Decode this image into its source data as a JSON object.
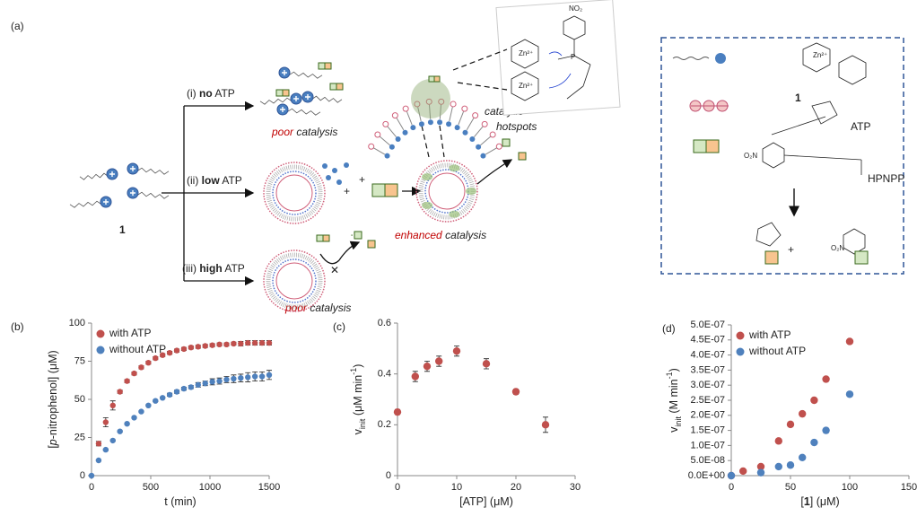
{
  "schematic": {
    "label": "(a)",
    "compound": "1",
    "branches": [
      {
        "number": "(i)",
        "amount": "no",
        "unit": "ATP"
      },
      {
        "number": "(ii)",
        "amount": "low",
        "unit": "ATP"
      },
      {
        "number": "(iii)",
        "amount": "high",
        "unit": "ATP"
      }
    ],
    "poor": "poor",
    "catalysis": "catalysis",
    "enhanced": "enhanced",
    "hotspots": [
      "catalytic",
      "hotspots"
    ],
    "plus": "+",
    "block": "✕",
    "zinc": "Zn²⁺",
    "nitro": "NO₂",
    "phosphorus": "P"
  },
  "legend_box": {
    "compound": "1",
    "atp": "ATP",
    "substrate": "HPNPP",
    "plus": "+",
    "nitro": "O₂N",
    "zinc": "Zn²⁺"
  },
  "chart_data": [
    {
      "type": "scatter",
      "panel": "(b)",
      "x_label": [
        {
          "text": "t (min)"
        }
      ],
      "y_label": [
        {
          "text": "["
        },
        {
          "text": "p",
          "style": "italic"
        },
        {
          "text": "-nitrophenol] (μM)"
        }
      ],
      "xlim": [
        0,
        1500
      ],
      "ylim": [
        0,
        100
      ],
      "xticks": [
        0,
        500,
        1000,
        1500
      ],
      "yticks": [
        0,
        25,
        50,
        75,
        100
      ],
      "legend": "upper left",
      "series": [
        {
          "name": "with ATP",
          "color": "#c0504d",
          "x": [
            60,
            120,
            180,
            240,
            300,
            360,
            420,
            480,
            540,
            600,
            660,
            720,
            780,
            840,
            900,
            960,
            1020,
            1080,
            1140,
            1200,
            1260,
            1320,
            1380,
            1440,
            1500
          ],
          "values": [
            21,
            35,
            46,
            55,
            62,
            67,
            71,
            74,
            77,
            79,
            80.5,
            82,
            83,
            84,
            84.5,
            85,
            85.5,
            86,
            86,
            86.5,
            86.5,
            87,
            87,
            87,
            87
          ],
          "errors": [
            1.5,
            3,
            3,
            1,
            1,
            1,
            1,
            1,
            1,
            1,
            1,
            1,
            1,
            1,
            1,
            1,
            1,
            1,
            1,
            1,
            1.5,
            1.5,
            1.5,
            1.5,
            1.5
          ]
        },
        {
          "name": "without ATP",
          "color": "#4f81bd",
          "x": [
            0,
            60,
            120,
            180,
            240,
            300,
            360,
            420,
            480,
            540,
            600,
            660,
            720,
            780,
            840,
            900,
            960,
            1020,
            1080,
            1140,
            1200,
            1260,
            1320,
            1380,
            1440,
            1500
          ],
          "values": [
            0,
            10,
            17,
            23,
            29,
            34,
            38,
            42,
            46,
            49,
            51,
            53,
            55,
            57,
            58,
            59.5,
            60.5,
            61.5,
            62,
            63,
            63.5,
            64,
            64.5,
            65,
            65,
            66
          ],
          "errors": [
            0.5,
            0.5,
            0.5,
            0.5,
            0.5,
            0.5,
            0.5,
            0.5,
            0.5,
            0.5,
            0.5,
            1,
            1,
            1,
            1,
            1.5,
            1.5,
            2,
            2,
            2,
            2.5,
            2.5,
            3,
            3,
            3,
            3
          ]
        }
      ]
    },
    {
      "type": "scatter",
      "panel": "(c)",
      "x_label": [
        {
          "text": "[ATP] (μM)"
        }
      ],
      "y_label": [
        {
          "text": "v"
        },
        {
          "text": "init",
          "style": "sub"
        },
        {
          "text": " (μM min"
        },
        {
          "text": "-1",
          "style": "sup"
        },
        {
          "text": ")"
        }
      ],
      "xlim": [
        0,
        30
      ],
      "ylim": [
        0,
        0.6
      ],
      "xticks": [
        0,
        10,
        20,
        30
      ],
      "yticks": [
        0,
        0.2,
        0.4,
        0.6
      ],
      "series": [
        {
          "color": "#c0504d",
          "x": [
            0,
            3,
            5,
            7,
            10,
            15,
            20,
            25
          ],
          "values": [
            0.25,
            0.39,
            0.43,
            0.45,
            0.49,
            0.44,
            0.33,
            0.2
          ],
          "errors": [
            0.01,
            0.02,
            0.02,
            0.02,
            0.02,
            0.02,
            0.01,
            0.03
          ]
        }
      ]
    },
    {
      "type": "scatter",
      "panel": "(d)",
      "x_label": [
        {
          "text": "["
        },
        {
          "text": "1",
          "style": "bold"
        },
        {
          "text": "] (μM)"
        }
      ],
      "y_label": [
        {
          "text": "v"
        },
        {
          "text": "init",
          "style": "sub"
        },
        {
          "text": " (M min"
        },
        {
          "text": "-1",
          "style": "sup"
        },
        {
          "text": ")"
        }
      ],
      "xlim": [
        0,
        150
      ],
      "ylim": [
        0,
        5e-07
      ],
      "xticks": [
        0,
        50,
        100,
        150
      ],
      "yticks": [
        {
          "value": 0,
          "label": "0.0E+00"
        },
        {
          "value": 5e-08,
          "label": "5.0E-08"
        },
        {
          "value": 1e-07,
          "label": "1.0E-07"
        },
        {
          "value": 1.5e-07,
          "label": "1.5E-07"
        },
        {
          "value": 2e-07,
          "label": "2.0E-07"
        },
        {
          "value": 2.5e-07,
          "label": "2.5E-07"
        },
        {
          "value": 3e-07,
          "label": "3.0E-07"
        },
        {
          "value": 3.5e-07,
          "label": "3.5E-07"
        },
        {
          "value": 4e-07,
          "label": "4.0E-07"
        },
        {
          "value": 4.5e-07,
          "label": "4.5E-07"
        },
        {
          "value": 5e-07,
          "label": "5.0E-07"
        }
      ],
      "legend": "upper left",
      "series": [
        {
          "name": "with ATP",
          "color": "#c0504d",
          "x": [
            0,
            10,
            25,
            40,
            50,
            60,
            70,
            80,
            100
          ],
          "values": [
            0,
            1.5e-08,
            3e-08,
            1.15e-07,
            1.7e-07,
            2.05e-07,
            2.5e-07,
            3.2e-07,
            4.45e-07
          ]
        },
        {
          "name": "without ATP",
          "color": "#4f81bd",
          "x": [
            0,
            25,
            40,
            50,
            60,
            70,
            80,
            100
          ],
          "values": [
            0,
            1e-08,
            3e-08,
            3.5e-08,
            6e-08,
            1.1e-07,
            1.5e-07,
            2.7e-07
          ]
        }
      ]
    }
  ]
}
